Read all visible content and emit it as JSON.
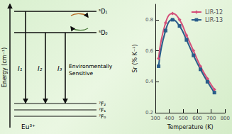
{
  "diagram": {
    "energy_axis_label": "Energy (cm⁻¹)",
    "upper_levels": [
      "⁵D₁",
      "⁵D₀"
    ],
    "lower_levels": [
      "⁷F₂",
      "⁷F₁",
      "⁷F₀"
    ],
    "transitions": [
      {
        "label": "I₁"
      },
      {
        "label": "I₂"
      },
      {
        "label": "I₃",
        "note": [
          "Environmentally",
          "Sensitive"
        ]
      }
    ],
    "ion": "Eu³⁺"
  },
  "chart_data": {
    "type": "line",
    "x_label": "Temperature (K)",
    "y_label": "Sr (% K⁻¹)",
    "x": [
      323,
      373,
      423,
      473,
      523,
      573,
      623,
      673,
      723
    ],
    "series": [
      {
        "name": "LIR-12",
        "color": "#d4507a",
        "marker": "diamond",
        "values": [
          0.55,
          0.78,
          0.84,
          0.8,
          0.7,
          0.6,
          0.5,
          0.42,
          0.35
        ]
      },
      {
        "name": "LIR-13",
        "color": "#2a5d8a",
        "marker": "square",
        "values": [
          0.5,
          0.73,
          0.8,
          0.76,
          0.67,
          0.57,
          0.48,
          0.4,
          0.33
        ]
      }
    ],
    "xlim": [
      300,
      800
    ],
    "xticks": [
      300,
      400,
      500,
      600,
      700,
      800
    ],
    "ylim": [
      0.2,
      0.9
    ],
    "yticks": [
      0.2,
      0.4,
      0.6,
      0.8
    ],
    "legend": "top-right",
    "grid": false
  }
}
